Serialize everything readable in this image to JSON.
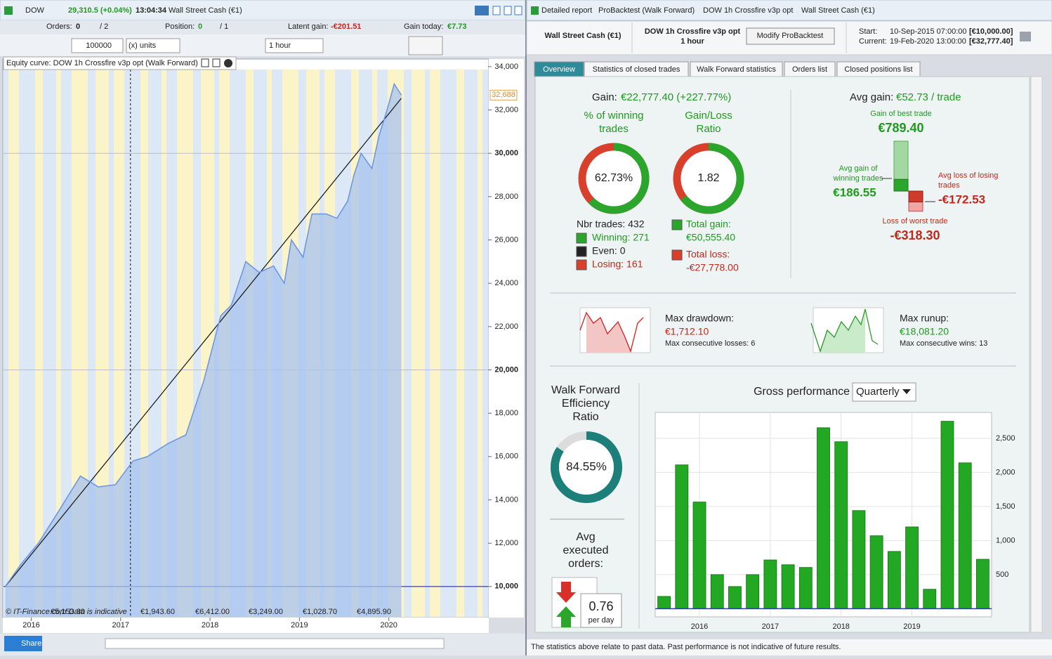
{
  "left": {
    "header": {
      "symbol": "DOW",
      "quote": "29,310.5 (+0.04%)",
      "time": "13:04:34",
      "instrument": "Wall Street Cash (€1)"
    },
    "toolbar": {
      "orders_label": "Orders:",
      "orders": "0",
      "orders_max": "/ 2",
      "position_label": "Position:",
      "position": "0",
      "position_max": "/ 1",
      "latent_label": "Latent gain:",
      "latent": "-€201.51",
      "today_label": "Gain today:",
      "today": "€7.73"
    },
    "controls": {
      "quantity": "100000",
      "units": "(x) units",
      "timeframe": "1 hour"
    },
    "equity_chart": {
      "type": "line",
      "title": "Equity curve: DOW 1h Crossfire v3p opt (Walk Forward)",
      "x": [
        2015.71,
        2015.88,
        2016.08,
        2016.31,
        2016.55,
        2016.75,
        2016.94,
        2017.14,
        2017.3,
        2017.53,
        2017.73,
        2017.93,
        2018.12,
        2018.24,
        2018.4,
        2018.55,
        2018.71,
        2018.83,
        2018.91,
        2019.04,
        2019.14,
        2019.3,
        2019.42,
        2019.54,
        2019.61,
        2019.69,
        2019.81,
        2019.89,
        2019.98,
        2020.06,
        2020.14
      ],
      "values": [
        10000,
        11000,
        12000,
        13500,
        15100,
        14600,
        14700,
        15800,
        16000,
        16600,
        17000,
        19500,
        22500,
        23000,
        25000,
        24500,
        24800,
        24000,
        26000,
        25200,
        27200,
        27200,
        27000,
        27800,
        29000,
        30000,
        29300,
        30800,
        32000,
        33200,
        32688
      ],
      "color": "#6f97dd",
      "trend": {
        "x": [
          2015.71,
          2020.14
        ],
        "values": [
          10000,
          32540
        ]
      },
      "marker_x": 2017.11,
      "current": {
        "value": 32688,
        "label": "32,688"
      },
      "xlim": [
        2015.69,
        2021.11
      ],
      "xticks": [
        2016,
        2017,
        2018,
        2019,
        2020
      ],
      "ylim": [
        8600,
        34320
      ],
      "yticks": [
        {
          "value": 10000,
          "label": "10,000"
        },
        {
          "value": 12000,
          "label": "12,000"
        },
        {
          "value": 14000,
          "label": "14,000"
        },
        {
          "value": 16000,
          "label": "16,000"
        },
        {
          "value": 18000,
          "label": "18,000"
        },
        {
          "value": 20000,
          "label": "20,000"
        },
        {
          "value": 22000,
          "label": "22,000"
        },
        {
          "value": 24000,
          "label": "24,000"
        },
        {
          "value": 26000,
          "label": "26,000"
        },
        {
          "value": 28000,
          "label": "28,000"
        },
        {
          "value": 30000,
          "label": "30,000"
        },
        {
          "value": 32000,
          "label": "32,000"
        },
        {
          "value": 34000,
          "label": "34,000"
        }
      ],
      "period_gains": [
        "€5,153.30",
        "€1,943.60",
        "€6,412.00",
        "€3,249.00",
        "€1,028.70",
        "€4,895.90"
      ],
      "source": "© IT-Finance.com Data is indicative"
    },
    "share": "Share"
  },
  "right": {
    "titlebar": [
      "Detailed report",
      "ProBacktest (Walk Forward)",
      "DOW 1h Crossfire v3p opt",
      "Wall Street Cash (€1)"
    ],
    "header": {
      "instrument": "Wall Street Cash (€1)",
      "system": "DOW 1h Crossfire v3p opt",
      "timeframe": "1 hour",
      "button": "Modify ProBacktest",
      "start_label": "Start:",
      "start_date": "10-Sep-2015 07:00:00",
      "start_capital": "[€10,000.00]",
      "current_label": "Current:",
      "current_date": "19-Feb-2020 13:00:00",
      "current_capital": "[€32,777.40]"
    },
    "tabs": [
      "Overview",
      "Statistics of closed trades",
      "Walk Forward statistics",
      "Orders list",
      "Closed positions list"
    ],
    "overview": {
      "gain_label": "Gain:",
      "gain": "€22,777.40 (+227.77%)",
      "winning": {
        "title": [
          "% of winning",
          "trades"
        ],
        "value": 62.73,
        "label": "62.73%"
      },
      "ratio": {
        "title": [
          "Gain/Loss",
          "Ratio"
        ],
        "value": 1.82
      },
      "trades": "Nbr trades: 432",
      "winning_trades": "Winning: 271",
      "even_trades": "Even: 0",
      "losing_trades": "Losing: 161",
      "total_gain_label": "Total gain:",
      "total_gain": "€50,555.40",
      "total_loss_label": "Total loss:",
      "total_loss": "-€27,778.00",
      "avg_gain_label": "Avg gain:",
      "avg_gain": "€52.73 / trade",
      "best": {
        "label": "Gain of best trade",
        "value": 789.4,
        "value_label": "€789.40"
      },
      "avg_win": {
        "label": [
          "Avg gain of",
          "winning trades"
        ],
        "value": 186.55,
        "value_label": "€186.55"
      },
      "avg_loss": {
        "label": [
          "Avg loss of losing",
          "trades"
        ],
        "value": -172.53,
        "value_label": "-€172.53"
      },
      "worst": {
        "label": "Loss of worst trade",
        "value": -318.3,
        "value_label": "-€318.30"
      },
      "drawdown": {
        "label": "Max drawdown:",
        "value": "€1,712.10",
        "note": "Max consecutive losses: 6"
      },
      "runup": {
        "label": "Max runup:",
        "value": "€18,081.20",
        "note": "Max consecutive wins: 13"
      },
      "efficiency": {
        "title": [
          "Walk Forward",
          "Efficiency",
          "Ratio"
        ],
        "value": 84.55,
        "label": "84.55%"
      },
      "orders": {
        "title": [
          "Avg",
          "executed",
          "orders:"
        ],
        "value": 0.76,
        "unit": "per day"
      },
      "gross": {
        "type": "bar",
        "title": "Gross performance",
        "period": "Quarterly",
        "categories": [
          null,
          null,
          "2016",
          null,
          null,
          null,
          "2017",
          null,
          null,
          null,
          "2018",
          null,
          null,
          null,
          "2019",
          null,
          null,
          null,
          null
        ],
        "values": [
          180,
          2110,
          1565,
          500,
          325,
          500,
          715,
          645,
          605,
          2655,
          2450,
          1440,
          1070,
          840,
          1200,
          285,
          2750,
          2140,
          725
        ],
        "color": "#22a822",
        "ylim": [
          -120,
          2880
        ],
        "yticks": [
          500,
          {
            "value": 1000,
            "label": "1,000"
          },
          {
            "value": 1500,
            "label": "1,500"
          },
          {
            "value": 2000,
            "label": "2,000"
          },
          {
            "value": 2500,
            "label": "2,500"
          }
        ],
        "grid": true
      }
    },
    "footer": "The statistics above relate to past data. Past performance is not indicative of future results."
  }
}
